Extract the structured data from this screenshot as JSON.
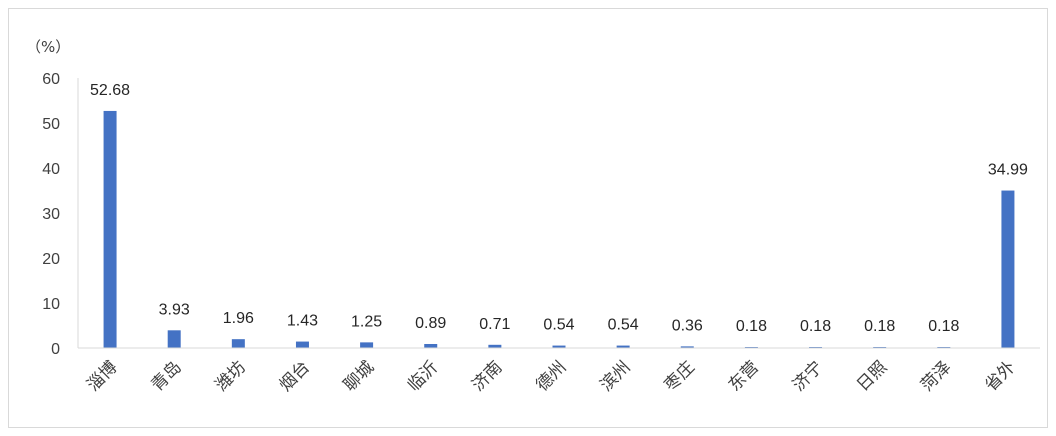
{
  "chart_data": {
    "type": "bar",
    "unit_label": "（%）",
    "categories": [
      "淄博",
      "青岛",
      "潍坊",
      "烟台",
      "聊城",
      "临沂",
      "济南",
      "德州",
      "滨州",
      "枣庄",
      "东营",
      "济宁",
      "日照",
      "菏泽",
      "省外"
    ],
    "values": [
      52.68,
      3.93,
      1.96,
      1.43,
      1.25,
      0.89,
      0.71,
      0.54,
      0.54,
      0.36,
      0.18,
      0.18,
      0.18,
      0.18,
      34.99
    ],
    "value_labels": [
      "52.68",
      "3.93",
      "1.96",
      "1.43",
      "1.25",
      "0.89",
      "0.71",
      "0.54",
      "0.54",
      "0.36",
      "0.18",
      "0.18",
      "0.18",
      "0.18",
      "34.99"
    ],
    "ylim": [
      0,
      60
    ],
    "yticks": [
      0,
      10,
      20,
      30,
      40,
      50,
      60
    ],
    "grid": false,
    "bar_color": "#4472c4"
  }
}
